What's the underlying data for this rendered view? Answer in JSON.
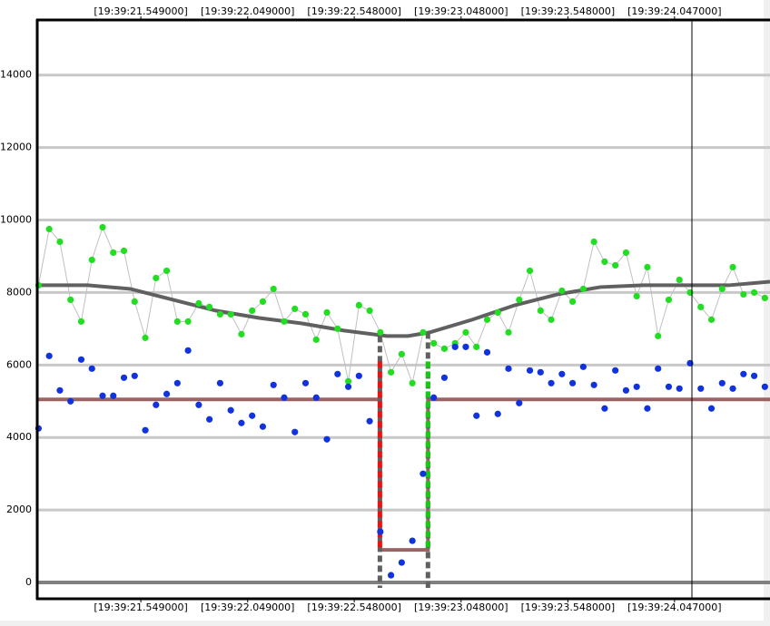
{
  "chart_data": {
    "type": "scatter",
    "x": [
      21.07,
      21.12,
      21.17,
      21.22,
      21.27,
      21.32,
      21.37,
      21.42,
      21.47,
      21.52,
      21.57,
      21.62,
      21.67,
      21.72,
      21.77,
      21.82,
      21.87,
      21.92,
      21.97,
      22.02,
      22.07,
      22.12,
      22.17,
      22.22,
      22.27,
      22.32,
      22.37,
      22.42,
      22.47,
      22.52,
      22.57,
      22.62,
      22.67,
      22.72,
      22.77,
      22.82,
      22.87,
      22.92,
      22.97,
      23.02,
      23.07,
      23.12,
      23.17,
      23.22,
      23.27,
      23.32,
      23.37,
      23.42,
      23.47,
      23.52,
      23.57,
      23.62,
      23.67,
      23.72,
      23.77,
      23.82,
      23.87,
      23.92,
      23.97,
      24.02,
      24.07,
      24.12,
      24.17,
      24.22,
      24.27,
      24.32,
      24.37,
      24.42,
      24.47
    ],
    "series": [
      {
        "color": "#22dd22",
        "line_color": "#c0c0c0",
        "markers": true,
        "line": true,
        "values": [
          8200,
          9750,
          9400,
          7800,
          7200,
          8900,
          9800,
          9100,
          9150,
          7750,
          6750,
          8400,
          8600,
          7200,
          7200,
          7700,
          7600,
          7400,
          7400,
          6850,
          7500,
          7750,
          8100,
          7200,
          7550,
          7400,
          6700,
          7450,
          7000,
          5550,
          7650,
          7500,
          6900,
          5800,
          6300,
          5500,
          6900,
          6600,
          6450,
          6600,
          6900,
          6500,
          7250,
          7450,
          6900,
          7800,
          8600,
          7500,
          7250,
          8050,
          7750,
          8100,
          9400,
          8850,
          8750,
          9100,
          7900,
          8700,
          6800,
          7800,
          8350,
          8000,
          7600,
          7250,
          8100,
          8700,
          7950,
          8000,
          7850
        ]
      },
      {
        "color": "#1133dd",
        "markers": true,
        "line": false,
        "values": [
          4250,
          6250,
          5300,
          5000,
          6150,
          5900,
          5150,
          5150,
          5650,
          5700,
          4200,
          4900,
          5200,
          5500,
          6400,
          4900,
          4500,
          5500,
          4750,
          4400,
          4600,
          4300,
          5450,
          5100,
          4150,
          5500,
          5100,
          3950,
          5750,
          5400,
          5700,
          4450,
          1400,
          200,
          550,
          1150,
          3000,
          5100,
          5650,
          6500,
          6500,
          4600,
          6350,
          4650,
          5900,
          4950,
          5850,
          5800,
          5500,
          5750,
          5500,
          5950,
          5450,
          4800,
          5850,
          5300,
          5400,
          4800,
          5900,
          5400,
          5350,
          6050,
          5350,
          4800,
          5500,
          5350,
          5750,
          5700,
          5400
        ]
      },
      {
        "color": "#606060",
        "line": true,
        "markers": false,
        "x": [
          21.064,
          21.3,
          21.5,
          21.7,
          21.9,
          22.1,
          22.3,
          22.5,
          22.7,
          22.8,
          22.9,
          23.1,
          23.3,
          23.5,
          23.7,
          23.9,
          24.1,
          24.3,
          24.494
        ],
        "values": [
          8200,
          8200,
          8100,
          7800,
          7500,
          7300,
          7150,
          6950,
          6800,
          6800,
          6900,
          7250,
          7650,
          7950,
          8150,
          8200,
          8200,
          8200,
          8300
        ]
      },
      {
        "color": "#9a6464",
        "line": true,
        "markers": false,
        "x": [
          21.064,
          22.668,
          22.668,
          22.893,
          22.893,
          24.494
        ],
        "values": [
          5050,
          5050,
          900,
          900,
          5050,
          5050
        ]
      },
      {
        "color": "#606060",
        "line": true,
        "dash": true,
        "x": [
          22.668,
          22.668
        ],
        "values": [
          6800,
          -150
        ]
      },
      {
        "color": "#606060",
        "line": true,
        "dash": true,
        "x": [
          22.893,
          22.893
        ],
        "values": [
          6900,
          -150
        ]
      },
      {
        "color": "#ee1111",
        "line": true,
        "dash": true,
        "x": [
          22.668,
          22.668
        ],
        "values": [
          6100,
          900
        ]
      },
      {
        "color": "#11cc11",
        "line": true,
        "dash": true,
        "x": [
          22.893,
          22.893
        ],
        "values": [
          6100,
          900
        ]
      }
    ],
    "xlim": [
      21.064,
      24.494
    ],
    "xticks": [
      {
        "value": 21.549,
        "label": "[19:39:21.549000]"
      },
      {
        "value": 22.049,
        "label": "[19:39:22.049000]"
      },
      {
        "value": 22.548,
        "label": "[19:39:22.548000]"
      },
      {
        "value": 23.048,
        "label": "[19:39:23.048000]"
      },
      {
        "value": 23.548,
        "label": "[19:39:23.548000]"
      },
      {
        "value": 24.047,
        "label": "[19:39:24.047000]"
      }
    ],
    "ylim": [
      -450,
      15520
    ],
    "yticks": [
      0,
      2000,
      4000,
      6000,
      8000,
      10000,
      12000,
      14000
    ],
    "grid": true
  }
}
